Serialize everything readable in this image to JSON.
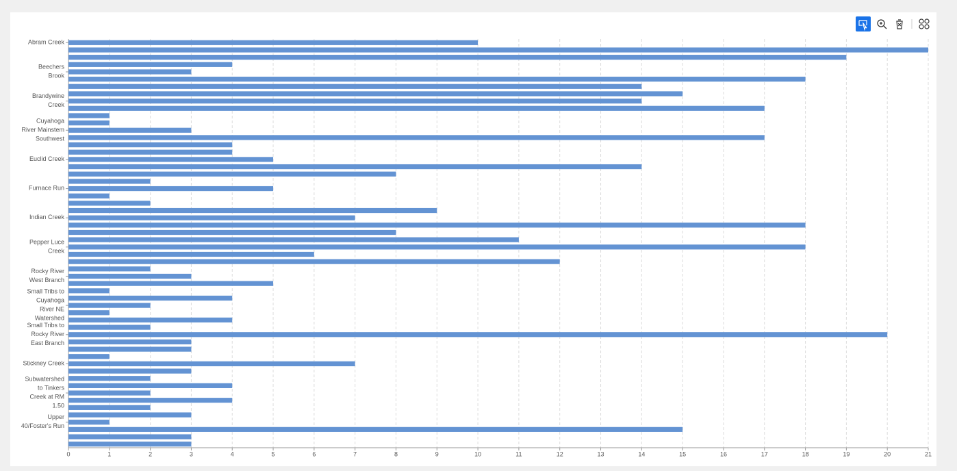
{
  "chart_data": {
    "type": "bar",
    "orientation": "horizontal",
    "color": "#6393d3",
    "categories": [
      "Abram Creek",
      null,
      null,
      null,
      "Beechers Brook",
      null,
      null,
      null,
      "Brandywine Creek",
      null,
      null,
      null,
      "Cuyahoga River Mainstem Southwest",
      null,
      null,
      null,
      "Euclid Creek",
      null,
      null,
      null,
      "Furnace Run",
      null,
      null,
      null,
      "Indian Creek",
      null,
      null,
      null,
      "Pepper Luce Creek",
      null,
      null,
      null,
      "Rocky River West Branch",
      null,
      null,
      null,
      "Small Tribs to Cuyahoga River NE Watershed",
      null,
      null,
      null,
      "Small Tribs to Rocky River East Branch",
      null,
      null,
      null,
      "Stickney Creek",
      null,
      null,
      null,
      "Subwatershed to Tinkers Creek at RM 1.50",
      null,
      null,
      null,
      "Upper 40/Foster's Run",
      null,
      null,
      null
    ],
    "values": [
      10,
      21,
      19,
      4,
      3,
      18,
      14,
      15,
      14,
      17,
      1,
      1,
      3,
      17,
      4,
      4,
      5,
      14,
      8,
      2,
      5,
      1,
      2,
      9,
      7,
      18,
      8,
      11,
      18,
      6,
      12,
      2,
      3,
      5,
      1,
      4,
      2,
      1,
      4,
      2,
      20,
      3,
      3,
      1,
      7,
      3,
      2,
      4,
      2,
      4,
      2,
      3,
      1,
      15,
      3,
      3
    ],
    "xlim": [
      0,
      21
    ],
    "xticks": [
      0,
      1,
      2,
      3,
      4,
      5,
      6,
      7,
      8,
      9,
      10,
      11,
      12,
      13,
      14,
      15,
      16,
      17,
      18,
      19,
      20,
      21
    ],
    "grid": true
  }
}
